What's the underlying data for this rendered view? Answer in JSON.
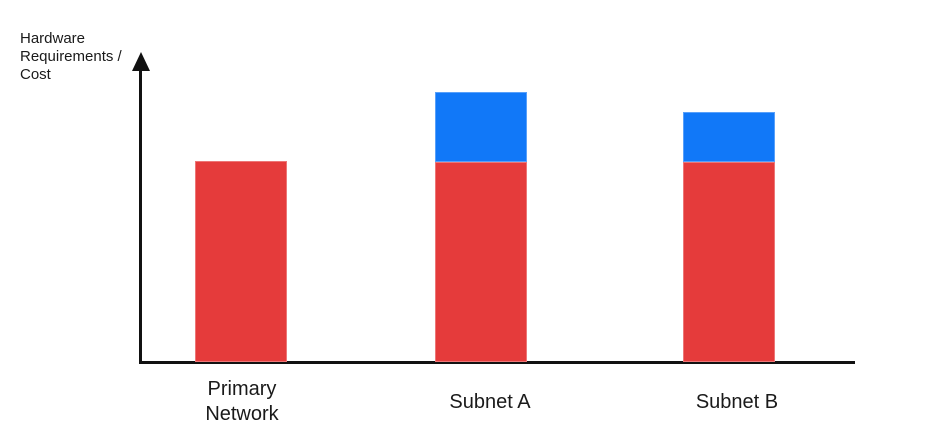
{
  "chart_data": {
    "type": "bar",
    "stacked": true,
    "title": "",
    "xlabel": "",
    "ylabel": "Hardware Requirements / Cost",
    "categories": [
      "Primary Network",
      "Subnet A",
      "Subnet B"
    ],
    "series": [
      {
        "name": "red-segment",
        "color": "#E53B3B",
        "values": [
          201,
          200,
          200
        ]
      },
      {
        "name": "blue-segment",
        "color": "#1178F8",
        "values": [
          0,
          70,
          50
        ]
      }
    ],
    "value_note": "relative heights (screen px); chart shows no numeric scale or ticks",
    "axis": {
      "grid": false,
      "legend": false,
      "numeric_ticks": false,
      "y_axis_arrow": true
    }
  },
  "labels": {
    "y_axis": "Hardware\nRequirements /\nCost",
    "categories": [
      "Primary\nNetwork",
      "Subnet A",
      "Subnet B"
    ]
  },
  "colors": {
    "red": "#E53B3B",
    "blue": "#1178F8",
    "axis": "#111111",
    "text": "#1A1A1A"
  }
}
